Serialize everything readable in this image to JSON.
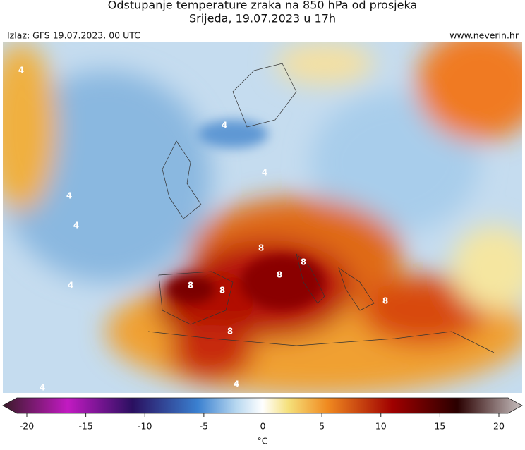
{
  "header": {
    "title": "Odstupanje temperature zraka na 850 hPa od prosjeka",
    "subtitle": "Srijeda, 19.07.2023 u 17h",
    "source": "Izlaz: GFS 19.07.2023. 00 UTC",
    "website": "www.neverin.hr"
  },
  "map": {
    "contour_labels": [
      "4",
      "4",
      "4",
      "4",
      "4",
      "8",
      "8",
      "8",
      "8",
      "8",
      "8",
      "8",
      "4",
      "4",
      "4"
    ]
  },
  "colorbar": {
    "lim": [
      -20,
      20
    ],
    "ticks": [
      -20,
      -15,
      -10,
      -5,
      0,
      5,
      10,
      15,
      20
    ],
    "unit": "°C"
  }
}
